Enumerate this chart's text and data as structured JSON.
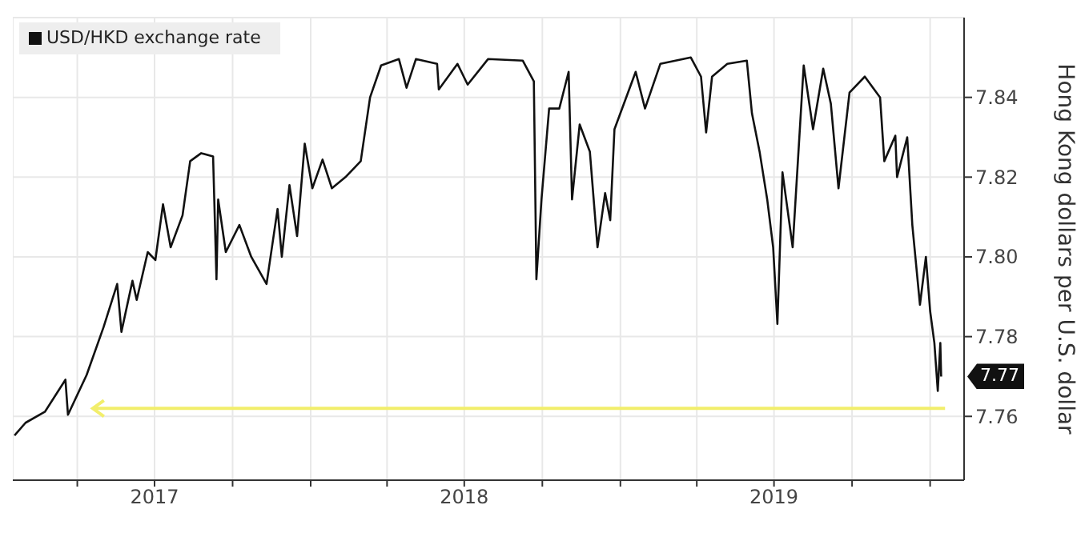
{
  "chart_data": {
    "type": "line",
    "ylabel": "Hong Kong dollars per U.S. dollar",
    "legend": "top left",
    "grid": true,
    "marker": "none",
    "line_style": "solid",
    "xlim": [
      "2017-01-15",
      "2020-02-10"
    ],
    "xticks": [
      {
        "value": "2017-04-01",
        "label": null
      },
      {
        "value": "2017-07-01",
        "label": "2017"
      },
      {
        "value": "2017-10-01",
        "label": null
      },
      {
        "value": "2018-01-01",
        "label": null
      },
      {
        "value": "2018-04-01",
        "label": null
      },
      {
        "value": "2018-07-01",
        "label": "2018"
      },
      {
        "value": "2018-10-01",
        "label": null
      },
      {
        "value": "2019-01-01",
        "label": null
      },
      {
        "value": "2019-04-01",
        "label": null
      },
      {
        "value": "2019-07-01",
        "label": "2019"
      },
      {
        "value": "2019-10-01",
        "label": null
      },
      {
        "value": "2020-01-01",
        "label": null
      }
    ],
    "ylim": [
      7.744,
      7.86
    ],
    "yticks": [
      {
        "value": 7.76,
        "label": "7.76"
      },
      {
        "value": 7.78,
        "label": "7.78"
      },
      {
        "value": 7.8,
        "label": "7.80"
      },
      {
        "value": 7.82,
        "label": "7.82"
      },
      {
        "value": 7.84,
        "label": "7.84"
      }
    ],
    "annotations": [
      "7.77"
    ],
    "ref_lines": [
      {
        "axis": "y",
        "value": 7.762,
        "color": "#f2ee6b",
        "line_style": "solid"
      }
    ],
    "series": [
      {
        "name": "USD/HKD exchange rate",
        "color": "#111111",
        "x": [
          "2017-01-17",
          "2017-01-30",
          "2017-02-22",
          "2017-03-18",
          "2017-03-21",
          "2017-04-12",
          "2017-05-02",
          "2017-05-18",
          "2017-05-23",
          "2017-06-05",
          "2017-06-10",
          "2017-06-23",
          "2017-07-02",
          "2017-07-11",
          "2017-07-20",
          "2017-08-03",
          "2017-08-12",
          "2017-08-25",
          "2017-09-08",
          "2017-09-12",
          "2017-09-14",
          "2017-09-23",
          "2017-10-09",
          "2017-10-23",
          "2017-11-10",
          "2017-11-23",
          "2017-11-28",
          "2017-12-07",
          "2017-12-16",
          "2017-12-25",
          "2018-01-03",
          "2018-01-15",
          "2018-01-26",
          "2018-02-11",
          "2018-03-01",
          "2018-03-12",
          "2018-03-25",
          "2018-04-15",
          "2018-04-24",
          "2018-05-05",
          "2018-05-30",
          "2018-06-01",
          "2018-06-23",
          "2018-07-05",
          "2018-07-29",
          "2018-09-08",
          "2018-09-21",
          "2018-09-24",
          "2018-09-30",
          "2018-10-09",
          "2018-10-21",
          "2018-11-01",
          "2018-11-05",
          "2018-11-14",
          "2018-11-26",
          "2018-12-05",
          "2018-12-14",
          "2018-12-20",
          "2018-12-25",
          "2019-01-19",
          "2019-01-30",
          "2019-02-17",
          "2019-03-25",
          "2019-04-06",
          "2019-04-12",
          "2019-04-19",
          "2019-05-07",
          "2019-05-30",
          "2019-06-05",
          "2019-06-14",
          "2019-06-23",
          "2019-06-30",
          "2019-07-05",
          "2019-07-11",
          "2019-07-23",
          "2019-08-05",
          "2019-08-16",
          "2019-08-28",
          "2019-09-06",
          "2019-09-15",
          "2019-09-28",
          "2019-10-16",
          "2019-11-03",
          "2019-11-08",
          "2019-11-21",
          "2019-11-23",
          "2019-12-05",
          "2019-12-11",
          "2019-12-20",
          "2019-12-27",
          "2020-01-01",
          "2020-01-06",
          "2020-01-10",
          "2020-01-13",
          "2020-01-14"
        ],
        "values": [
          7.7552,
          7.7584,
          7.7612,
          7.7692,
          7.7604,
          7.7704,
          7.7824,
          7.7932,
          7.7812,
          7.794,
          7.7892,
          7.8012,
          7.7992,
          7.8132,
          7.8024,
          7.8104,
          7.824,
          7.826,
          7.8252,
          7.7944,
          7.8144,
          7.8012,
          7.808,
          7.8,
          7.7932,
          7.812,
          7.8,
          7.818,
          7.8052,
          7.8284,
          7.8172,
          7.8244,
          7.8172,
          7.82,
          7.824,
          7.84,
          7.848,
          7.8496,
          7.8424,
          7.8496,
          7.8484,
          7.842,
          7.8484,
          7.8432,
          7.8496,
          7.8492,
          7.844,
          7.7944,
          7.8144,
          7.8372,
          7.8372,
          7.8464,
          7.8144,
          7.8332,
          7.8264,
          7.8024,
          7.816,
          7.8092,
          7.832,
          7.8464,
          7.8372,
          7.8484,
          7.85,
          7.8452,
          7.8312,
          7.8452,
          7.8484,
          7.8492,
          7.836,
          7.8264,
          7.8144,
          7.8024,
          7.7832,
          7.8212,
          7.8024,
          7.848,
          7.832,
          7.8472,
          7.8384,
          7.8172,
          7.8412,
          7.8452,
          7.84,
          7.824,
          7.8304,
          7.82,
          7.83,
          7.808,
          7.788,
          7.8,
          7.7864,
          7.7784,
          7.7664,
          7.7784,
          7.77
        ]
      }
    ]
  }
}
